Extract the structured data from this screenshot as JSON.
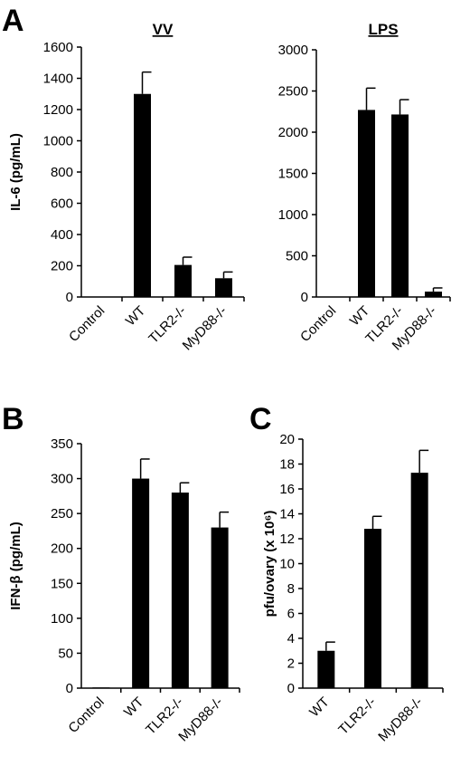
{
  "panels": {
    "A": "A",
    "B": "B",
    "C": "C"
  },
  "chart_data": [
    {
      "id": "chart-vv",
      "type": "bar",
      "title": "VV",
      "ylabel": "IL-6 (pg/mL)",
      "xlabel": "",
      "categories": [
        "Control",
        "WT",
        "TLR2-/-",
        "MyD88-/-"
      ],
      "values": [
        0,
        1300,
        205,
        120
      ],
      "errors": [
        0,
        140,
        50,
        40
      ],
      "ylim": [
        0,
        1600
      ],
      "yticks": [
        0,
        200,
        400,
        600,
        800,
        1000,
        1200,
        1400,
        1600
      ],
      "grid": false
    },
    {
      "id": "chart-lps",
      "type": "bar",
      "title": "LPS",
      "ylabel": "",
      "xlabel": "",
      "categories": [
        "Control",
        "WT",
        "TLR2-/-",
        "MyD88-/-"
      ],
      "values": [
        0,
        2270,
        2215,
        65
      ],
      "errors": [
        0,
        265,
        180,
        45
      ],
      "ylim": [
        0,
        3000
      ],
      "yticks": [
        0,
        500,
        1000,
        1500,
        2000,
        2500,
        3000
      ],
      "grid": false
    },
    {
      "id": "chart-ifn",
      "type": "bar",
      "title": "",
      "ylabel": "IFN-β (pg/mL)",
      "xlabel": "",
      "categories": [
        "Control",
        "WT",
        "TLR2-/-",
        "MyD88-/-"
      ],
      "values": [
        1,
        300,
        280,
        230
      ],
      "errors": [
        0,
        28,
        14,
        22
      ],
      "ylim": [
        0,
        350
      ],
      "yticks": [
        0,
        50,
        100,
        150,
        200,
        250,
        300,
        350
      ],
      "grid": false
    },
    {
      "id": "chart-pfu",
      "type": "bar",
      "title": "",
      "ylabel": "pfu/ovary (x 10⁶)",
      "xlabel": "",
      "categories": [
        "WT",
        "TLR2-/-",
        "MyD88-/-"
      ],
      "values": [
        3.0,
        12.8,
        17.3
      ],
      "errors": [
        0.7,
        1.0,
        1.8
      ],
      "ylim": [
        0,
        20
      ],
      "yticks": [
        0,
        2,
        4,
        6,
        8,
        10,
        12,
        14,
        16,
        18,
        20
      ],
      "grid": false
    }
  ]
}
